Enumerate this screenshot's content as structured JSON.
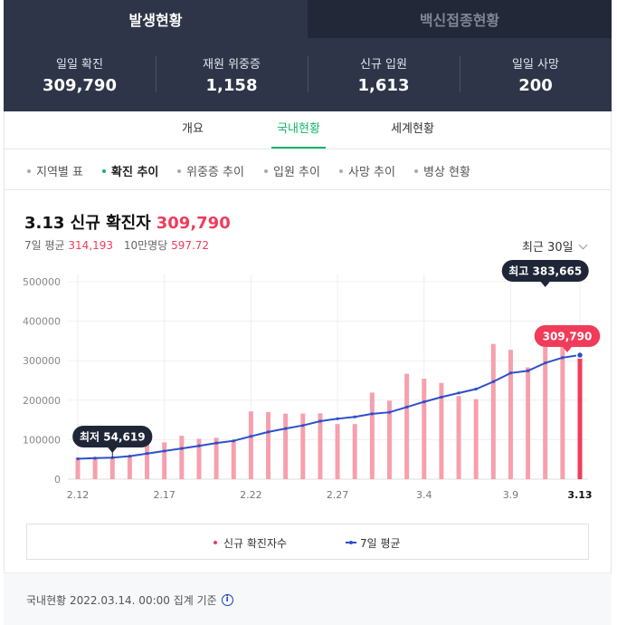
{
  "tabs": [
    {
      "label": "발생현황",
      "active": true
    },
    {
      "label": "백신접종현황",
      "active": false
    }
  ],
  "stats": [
    {
      "label": "일일 확진",
      "value": "309,790"
    },
    {
      "label": "재원 위중증",
      "value": "1,158"
    },
    {
      "label": "신규 입원",
      "value": "1,613"
    },
    {
      "label": "일일 사망",
      "value": "200"
    }
  ],
  "subtabs": [
    "개요",
    "국내현황",
    "세계현황"
  ],
  "active_subtab": "국내현황",
  "filters": [
    "지역별 표",
    "확진 추이",
    "위중증 추이",
    "입원 추이",
    "사망 추이",
    "병상 현황"
  ],
  "active_filter": "확진 추이",
  "headline": {
    "date": "3.13 신규 확진자",
    "value": "309,790"
  },
  "subline": {
    "avg_label": "7일 평균",
    "avg_value": "314,193",
    "per_label": "10만명당",
    "per_value": "597.72"
  },
  "range_select": "최근 30일",
  "legend": {
    "bars": "신규 확진자수",
    "line": "7일 평균"
  },
  "footer": "국내현황 2022.03.14. 00:00 집계 기준",
  "colors": {
    "bar": "#f7a0ad",
    "bar_highlight": "#f03c5a",
    "line": "#2f4fc9",
    "dark": "#1f2638",
    "accent": "#15b368"
  },
  "chart_data": {
    "type": "bar",
    "x": [
      "2.12",
      "2.13",
      "2.14",
      "2.15",
      "2.16",
      "2.17",
      "2.18",
      "2.19",
      "2.20",
      "2.21",
      "2.22",
      "2.23",
      "2.24",
      "2.25",
      "2.26",
      "2.27",
      "2.28",
      "3.1",
      "3.2",
      "3.3",
      "3.4",
      "3.5",
      "3.6",
      "3.7",
      "3.8",
      "3.9",
      "3.10",
      "3.11",
      "3.12",
      "3.13"
    ],
    "x_tick_labels": [
      "2.12",
      "2.17",
      "2.22",
      "2.27",
      "3.4",
      "3.9",
      "3.13"
    ],
    "series": [
      {
        "name": "신규 확진자수",
        "type": "bar",
        "values": [
          54941,
          56431,
          54619,
          57177,
          90443,
          93135,
          109831,
          102211,
          104829,
          95362,
          171452,
          170016,
          165890,
          166209,
          166722,
          139626,
          139539,
          219241,
          198803,
          266853,
          254327,
          243628,
          210716,
          202721,
          342446,
          327549,
          282978,
          383665,
          350190,
          309790
        ]
      },
      {
        "name": "7일 평균",
        "type": "line",
        "values": [
          51500,
          53100,
          54600,
          58200,
          65000,
          71300,
          77800,
          84500,
          91500,
          97000,
          108500,
          119500,
          128100,
          136000,
          146800,
          153000,
          157800,
          165400,
          169300,
          182500,
          195900,
          207700,
          218100,
          228200,
          246800,
          268900,
          274400,
          294300,
          307700,
          314193
        ]
      }
    ],
    "ylim": [
      0,
      500000
    ],
    "y_ticks": [
      0,
      100000,
      200000,
      300000,
      400000,
      500000
    ],
    "annotations": [
      {
        "label": "최저 54,619",
        "x": "2.14",
        "value": 54619
      },
      {
        "label": "최고 383,665",
        "x": "3.11",
        "value": 383665
      },
      {
        "label": "309,790",
        "x": "3.13",
        "value": 309790
      }
    ]
  }
}
